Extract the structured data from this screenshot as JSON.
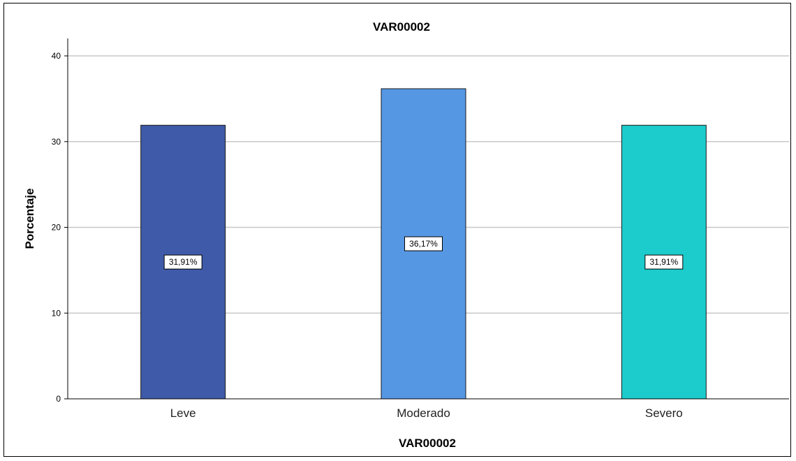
{
  "chart_data": {
    "type": "bar",
    "title": "VAR00002",
    "xlabel": "VAR00002",
    "ylabel": "Porcentaje",
    "categories": [
      "Leve",
      "Moderado",
      "Severo"
    ],
    "values": [
      31.91,
      36.17,
      31.91
    ],
    "data_labels": [
      "31,91%",
      "36,17%",
      "31,91%"
    ],
    "colors": [
      "#3f5aa8",
      "#5697e4",
      "#1ccbcb"
    ],
    "ylim": [
      0,
      40
    ],
    "yticks": [
      0,
      10,
      20,
      30,
      40
    ],
    "grid": true,
    "legend": "none"
  }
}
